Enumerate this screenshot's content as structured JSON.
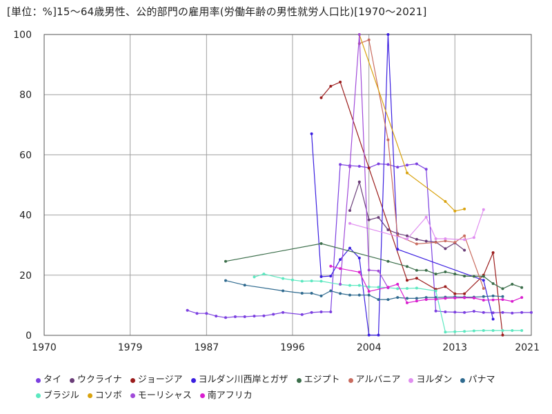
{
  "chart_data": {
    "type": "line",
    "title": "[単位：%]15～64歳男性、公的部門の雇用率(労働年齢の男性就労人口比)[1970～2021]",
    "xlabel": "",
    "ylabel": "",
    "xlim": [
      1970,
      2021
    ],
    "ylim": [
      0,
      100
    ],
    "x_ticks": [
      1970,
      1979,
      1987,
      1996,
      2004,
      2013,
      2021
    ],
    "y_ticks": [
      0,
      20,
      40,
      60,
      80,
      100
    ],
    "grid": true,
    "legend_position": "bottom",
    "series": [
      {
        "name": "タイ",
        "color": "#7b3fe0",
        "points": [
          [
            1985,
            8.3
          ],
          [
            1986,
            7.3
          ],
          [
            1987,
            7.3
          ],
          [
            1988,
            6.4
          ],
          [
            1989,
            5.9
          ],
          [
            1990,
            6.2
          ],
          [
            1991,
            6.2
          ],
          [
            1992,
            6.4
          ],
          [
            1993,
            6.5
          ],
          [
            1994,
            7.0
          ],
          [
            1995,
            7.6
          ],
          [
            1997,
            6.9
          ],
          [
            1998,
            7.6
          ],
          [
            1999,
            7.8
          ],
          [
            2000,
            7.8
          ],
          [
            2001,
            56.8
          ],
          [
            2002,
            56.4
          ],
          [
            2003,
            56.2
          ],
          [
            2004,
            55.7
          ],
          [
            2005,
            57.0
          ],
          [
            2006,
            56.8
          ],
          [
            2007,
            55.9
          ],
          [
            2008,
            56.6
          ],
          [
            2009,
            57.0
          ],
          [
            2010,
            55.2
          ],
          [
            2011,
            8.1
          ],
          [
            2012,
            7.8
          ],
          [
            2013,
            7.7
          ],
          [
            2014,
            7.6
          ],
          [
            2015,
            8.0
          ],
          [
            2016,
            7.6
          ],
          [
            2017,
            7.5
          ],
          [
            2018,
            7.6
          ],
          [
            2019,
            7.4
          ],
          [
            2020,
            7.6
          ],
          [
            2021,
            7.6
          ]
        ]
      },
      {
        "name": "ウクライナ",
        "color": "#6a3d78",
        "points": [
          [
            2002,
            41.5
          ],
          [
            2003,
            51.0
          ],
          [
            2004,
            38.4
          ],
          [
            2005,
            39.2
          ],
          [
            2006,
            35.1
          ],
          [
            2007,
            33.8
          ],
          [
            2008,
            33.1
          ],
          [
            2009,
            31.9
          ],
          [
            2010,
            31.3
          ],
          [
            2011,
            31.0
          ],
          [
            2012,
            28.8
          ],
          [
            2013,
            30.7
          ],
          [
            2014,
            28.3
          ]
        ]
      },
      {
        "name": "ジョージア",
        "color": "#9b1c1c",
        "points": [
          [
            1999,
            79.0
          ],
          [
            2000,
            82.8
          ],
          [
            2001,
            84.2
          ],
          [
            2004,
            55.6
          ],
          [
            2008,
            18.3
          ],
          [
            2009,
            19.0
          ],
          [
            2011,
            15.3
          ],
          [
            2012,
            16.2
          ],
          [
            2013,
            13.8
          ],
          [
            2014,
            13.8
          ],
          [
            2016,
            20.0
          ],
          [
            2017,
            27.5
          ],
          [
            2018,
            0.1
          ]
        ]
      },
      {
        "name": "ヨルダン川西岸とガザ",
        "color": "#3a1ee0",
        "points": [
          [
            1998,
            67.0
          ],
          [
            1999,
            19.5
          ],
          [
            2000,
            19.7
          ],
          [
            2001,
            25.2
          ],
          [
            2002,
            29.0
          ],
          [
            2003,
            25.7
          ],
          [
            2004,
            0.1
          ],
          [
            2005,
            0.1
          ],
          [
            2006,
            100.0
          ],
          [
            2007,
            28.6
          ],
          [
            2016,
            18.3
          ],
          [
            2017,
            5.4
          ]
        ]
      },
      {
        "name": "エジプト",
        "color": "#3b6e4a",
        "points": [
          [
            1989,
            24.6
          ],
          [
            1999,
            30.5
          ],
          [
            2006,
            24.6
          ],
          [
            2008,
            22.9
          ],
          [
            2009,
            21.6
          ],
          [
            2010,
            21.6
          ],
          [
            2011,
            20.4
          ],
          [
            2012,
            21.1
          ],
          [
            2013,
            20.4
          ],
          [
            2014,
            19.7
          ],
          [
            2015,
            19.6
          ],
          [
            2016,
            19.6
          ],
          [
            2017,
            17.2
          ],
          [
            2018,
            15.5
          ],
          [
            2019,
            17.0
          ],
          [
            2020,
            15.9
          ]
        ]
      },
      {
        "name": "アルバニア",
        "color": "#c96b5e",
        "points": [
          [
            2003,
            97.0
          ],
          [
            2004,
            98.2
          ],
          [
            2006,
            65.0
          ],
          [
            2007,
            33.1
          ],
          [
            2009,
            30.4
          ],
          [
            2011,
            30.9
          ],
          [
            2012,
            31.4
          ],
          [
            2013,
            30.9
          ],
          [
            2014,
            33.1
          ],
          [
            2016,
            15.6
          ]
        ]
      },
      {
        "name": "ヨルダン",
        "color": "#e08ef0",
        "points": [
          [
            2002,
            37.2
          ],
          [
            2008,
            32.0
          ],
          [
            2010,
            39.3
          ],
          [
            2011,
            32.1
          ],
          [
            2012,
            32.1
          ],
          [
            2014,
            31.8
          ],
          [
            2015,
            32.5
          ],
          [
            2016,
            41.8
          ]
        ]
      },
      {
        "name": "パナマ",
        "color": "#2f6a8f",
        "points": [
          [
            1989,
            18.2
          ],
          [
            1991,
            16.7
          ],
          [
            1995,
            14.8
          ],
          [
            1997,
            14.0
          ],
          [
            1998,
            14.0
          ],
          [
            1999,
            13.1
          ],
          [
            2000,
            14.8
          ],
          [
            2001,
            13.9
          ],
          [
            2002,
            13.4
          ],
          [
            2003,
            13.4
          ],
          [
            2004,
            13.4
          ],
          [
            2005,
            11.9
          ],
          [
            2006,
            11.9
          ],
          [
            2007,
            12.6
          ],
          [
            2008,
            12.3
          ],
          [
            2009,
            12.3
          ],
          [
            2010,
            12.6
          ],
          [
            2011,
            12.6
          ],
          [
            2012,
            12.7
          ],
          [
            2013,
            12.8
          ],
          [
            2014,
            12.7
          ],
          [
            2015,
            12.7
          ],
          [
            2016,
            12.9
          ],
          [
            2017,
            13.1
          ],
          [
            2018,
            12.9
          ]
        ]
      },
      {
        "name": "ブラジル",
        "color": "#5ce8c0",
        "points": [
          [
            1992,
            19.4
          ],
          [
            1993,
            20.4
          ],
          [
            1995,
            18.9
          ],
          [
            1996,
            18.4
          ],
          [
            1997,
            18.0
          ],
          [
            1998,
            18.1
          ],
          [
            1999,
            18.0
          ],
          [
            2001,
            16.9
          ],
          [
            2002,
            16.6
          ],
          [
            2003,
            16.6
          ],
          [
            2004,
            16.1
          ],
          [
            2005,
            16.0
          ],
          [
            2006,
            15.9
          ],
          [
            2007,
            15.5
          ],
          [
            2008,
            15.6
          ],
          [
            2009,
            15.7
          ],
          [
            2011,
            14.8
          ],
          [
            2012,
            1.1
          ],
          [
            2013,
            1.2
          ],
          [
            2014,
            1.3
          ],
          [
            2015,
            1.5
          ],
          [
            2016,
            1.6
          ],
          [
            2017,
            1.6
          ],
          [
            2018,
            1.6
          ],
          [
            2019,
            1.6
          ],
          [
            2020,
            1.6
          ]
        ]
      },
      {
        "name": "コソボ",
        "color": "#d9a30f",
        "points": [
          [
            2003,
            100.0
          ],
          [
            2008,
            54.0
          ],
          [
            2012,
            44.5
          ],
          [
            2013,
            41.3
          ],
          [
            2014,
            42.0
          ]
        ]
      },
      {
        "name": "モーリシャス",
        "color": "#a04ad9",
        "points": [
          [
            2001,
            17.0
          ],
          [
            2002,
            56.0
          ],
          [
            2003,
            100.0
          ],
          [
            2004,
            21.7
          ],
          [
            2005,
            21.4
          ],
          [
            2006,
            15.8
          ]
        ]
      },
      {
        "name": "南アフリカ",
        "color": "#d91ecf",
        "points": [
          [
            2000,
            23.0
          ],
          [
            2001,
            22.2
          ],
          [
            2003,
            21.0
          ],
          [
            2004,
            14.6
          ],
          [
            2006,
            16.0
          ],
          [
            2007,
            17.0
          ],
          [
            2008,
            10.8
          ],
          [
            2009,
            11.4
          ],
          [
            2010,
            11.9
          ],
          [
            2011,
            12.0
          ],
          [
            2012,
            12.3
          ],
          [
            2013,
            12.4
          ],
          [
            2014,
            12.5
          ],
          [
            2015,
            12.4
          ],
          [
            2016,
            11.7
          ],
          [
            2017,
            11.8
          ],
          [
            2018,
            11.9
          ],
          [
            2019,
            11.3
          ],
          [
            2020,
            12.6
          ]
        ]
      }
    ]
  }
}
